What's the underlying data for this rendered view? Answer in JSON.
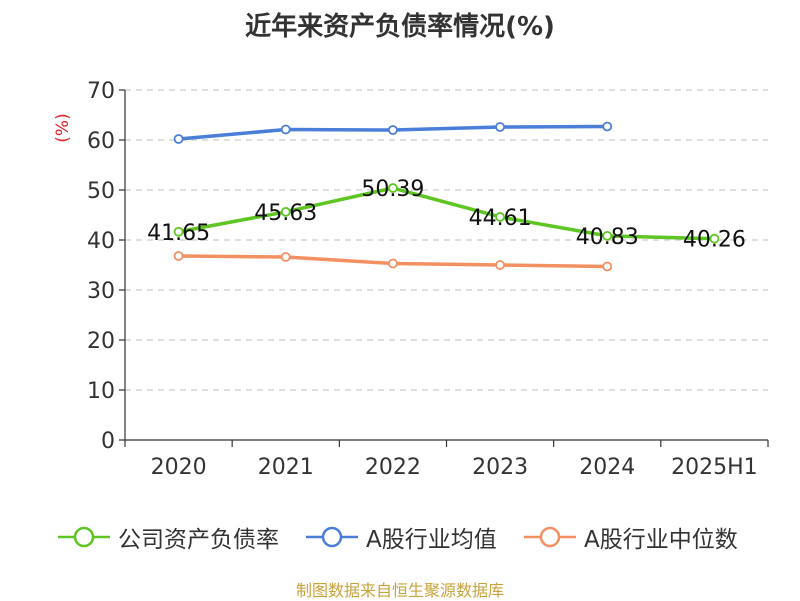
{
  "chart_data": {
    "type": "line",
    "title": "近年来资产负债率情况(%)",
    "ylabel": "(%)",
    "xlabel": "",
    "categories": [
      "2020",
      "2021",
      "2022",
      "2023",
      "2024",
      "2025H1"
    ],
    "ylim": [
      0,
      70
    ],
    "yticks": [
      0,
      10,
      20,
      30,
      40,
      50,
      60,
      70
    ],
    "grid": true,
    "legend_position": "bottom",
    "series": [
      {
        "name": "公司资产负债率",
        "color": "#5ec523",
        "values": [
          41.65,
          45.63,
          50.39,
          44.61,
          40.83,
          40.26
        ],
        "labels": true
      },
      {
        "name": "A股行业均值",
        "color": "#4a7ed8",
        "values": [
          60.2,
          62.1,
          62.0,
          62.6,
          62.7,
          null
        ],
        "labels": false
      },
      {
        "name": "A股行业中位数",
        "color": "#f29061",
        "values": [
          36.8,
          36.6,
          35.3,
          35.0,
          34.7,
          null
        ],
        "labels": false
      }
    ]
  },
  "footer": {
    "source": "制图数据来自恒生聚源数据库"
  }
}
